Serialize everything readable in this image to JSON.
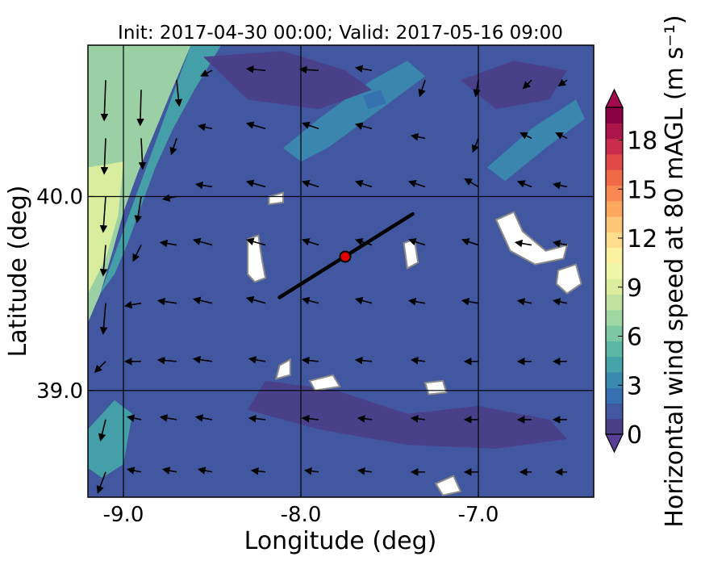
{
  "chart_data": {
    "type": "heatmap",
    "title": "Init: 2017-04-30 00:00; Valid: 2017-05-16 09:00",
    "xlabel": "Longitude (deg)",
    "ylabel": "Latitude (deg)",
    "xlim": [
      -9.2,
      -6.35
    ],
    "ylim": [
      38.45,
      40.78
    ],
    "xticks": [
      {
        "value": -9.0,
        "label": "-9.0"
      },
      {
        "value": -8.0,
        "label": "-8.0"
      },
      {
        "value": -7.0,
        "label": "-7.0"
      }
    ],
    "yticks": [
      {
        "value": 39.0,
        "label": "39.0"
      },
      {
        "value": 40.0,
        "label": "40.0"
      }
    ],
    "gridlines": {
      "lon": [
        -9.0,
        -8.0,
        -7.0
      ],
      "lat": [
        39.0,
        40.0
      ]
    },
    "colorbar": {
      "label": "Horizontal wind speed at 80 mAGL (m s⁻¹)",
      "min": 0,
      "max": 20,
      "extend": "both",
      "ticks": [
        {
          "value": 0,
          "label": "0"
        },
        {
          "value": 3,
          "label": "3"
        },
        {
          "value": 6,
          "label": "6"
        },
        {
          "value": 9,
          "label": "9"
        },
        {
          "value": 12,
          "label": "12"
        },
        {
          "value": 15,
          "label": "15"
        },
        {
          "value": 18,
          "label": "18"
        }
      ],
      "colors": [
        "#4a3f88",
        "#41579f",
        "#3670b0",
        "#3a89af",
        "#46a3a9",
        "#5cb8a3",
        "#7dc9a4",
        "#9fd7a3",
        "#bfe3a0",
        "#dcee9e",
        "#f2f6a8",
        "#fdf0a1",
        "#fddd8b",
        "#fdc677",
        "#fca85f",
        "#f88952",
        "#f06a47",
        "#e04b4a",
        "#c92d4b",
        "#ab1448",
        "#8a0244"
      ],
      "under_color": "#5a3f99",
      "over_color": "#a10a4e"
    },
    "transect": {
      "start": {
        "lon": -8.12,
        "lat": 39.48
      },
      "end": {
        "lon": -7.37,
        "lat": 39.91
      },
      "color": "#000000"
    },
    "marker": {
      "lon": -7.75,
      "lat": 39.69,
      "color": "#e00000"
    },
    "field_regions": [
      {
        "speed": 7.0,
        "points": [
          [
            -9.2,
            40.78
          ],
          [
            -8.62,
            40.78
          ],
          [
            -8.74,
            40.52
          ],
          [
            -8.83,
            40.32
          ],
          [
            -8.92,
            40.12
          ],
          [
            -9.0,
            39.92
          ],
          [
            -9.06,
            39.72
          ],
          [
            -9.13,
            39.5
          ],
          [
            -9.2,
            39.35
          ]
        ]
      },
      {
        "speed": 9.0,
        "points": [
          [
            -9.2,
            40.15
          ],
          [
            -9.0,
            40.18
          ],
          [
            -9.03,
            39.9
          ],
          [
            -9.1,
            39.68
          ],
          [
            -9.2,
            39.5
          ]
        ]
      },
      {
        "speed": 4.5,
        "points": [
          [
            -8.62,
            40.78
          ],
          [
            -8.45,
            40.78
          ],
          [
            -8.6,
            40.55
          ],
          [
            -8.72,
            40.35
          ],
          [
            -8.82,
            40.15
          ],
          [
            -8.9,
            39.95
          ],
          [
            -8.98,
            39.75
          ],
          [
            -9.05,
            39.6
          ],
          [
            -9.13,
            39.5
          ]
        ]
      },
      {
        "speed": 3.5,
        "points": [
          [
            -8.1,
            40.25
          ],
          [
            -7.9,
            40.4
          ],
          [
            -7.6,
            40.6
          ],
          [
            -7.4,
            40.7
          ],
          [
            -7.3,
            40.62
          ],
          [
            -7.55,
            40.45
          ],
          [
            -7.85,
            40.25
          ],
          [
            -8.0,
            40.18
          ]
        ]
      },
      {
        "speed": 2.5,
        "points": [
          [
            -7.65,
            40.52
          ],
          [
            -7.55,
            40.55
          ],
          [
            -7.52,
            40.48
          ],
          [
            -7.62,
            40.45
          ]
        ]
      },
      {
        "speed": 3.5,
        "points": [
          [
            -6.95,
            40.15
          ],
          [
            -6.7,
            40.35
          ],
          [
            -6.45,
            40.5
          ],
          [
            -6.4,
            40.4
          ],
          [
            -6.62,
            40.25
          ],
          [
            -6.85,
            40.08
          ]
        ]
      },
      {
        "speed": 0.6,
        "points": [
          [
            -8.55,
            40.72
          ],
          [
            -8.1,
            40.75
          ],
          [
            -7.75,
            40.65
          ],
          [
            -7.6,
            40.55
          ],
          [
            -7.9,
            40.45
          ],
          [
            -8.3,
            40.5
          ]
        ]
      },
      {
        "speed": 0.6,
        "points": [
          [
            -7.1,
            40.6
          ],
          [
            -6.8,
            40.7
          ],
          [
            -6.5,
            40.65
          ],
          [
            -6.6,
            40.5
          ],
          [
            -6.9,
            40.45
          ]
        ]
      },
      {
        "speed": 1.2,
        "points": [
          [
            -8.75,
            40.0
          ],
          [
            -8.35,
            40.08
          ],
          [
            -8.15,
            39.92
          ],
          [
            -8.35,
            39.78
          ],
          [
            -8.65,
            39.82
          ]
        ]
      },
      {
        "speed": 0.7,
        "points": [
          [
            -8.2,
            39.05
          ],
          [
            -7.8,
            39.0
          ],
          [
            -7.4,
            38.88
          ],
          [
            -7.0,
            38.92
          ],
          [
            -6.6,
            38.85
          ],
          [
            -6.5,
            38.75
          ],
          [
            -6.9,
            38.7
          ],
          [
            -7.4,
            38.72
          ],
          [
            -7.9,
            38.8
          ],
          [
            -8.3,
            38.9
          ]
        ]
      },
      {
        "speed": 1.0,
        "points": [
          [
            -8.85,
            38.85
          ],
          [
            -8.4,
            38.9
          ],
          [
            -8.1,
            38.75
          ],
          [
            -8.5,
            38.6
          ],
          [
            -8.9,
            38.65
          ]
        ]
      },
      {
        "speed": 1.5,
        "points": [
          [
            -7.5,
            39.45
          ],
          [
            -7.05,
            39.5
          ],
          [
            -6.85,
            39.3
          ],
          [
            -7.2,
            39.2
          ],
          [
            -7.55,
            39.28
          ]
        ]
      },
      {
        "speed": 4.0,
        "points": [
          [
            -9.05,
            38.95
          ],
          [
            -8.95,
            38.88
          ],
          [
            -9.0,
            38.62
          ],
          [
            -9.12,
            38.55
          ],
          [
            -9.2,
            38.6
          ],
          [
            -9.2,
            38.8
          ]
        ]
      }
    ],
    "wind_vectors": [
      {
        "lon": -9.1,
        "lat": 40.6,
        "u": -0.3,
        "v": -8
      },
      {
        "lon": -8.9,
        "lat": 40.55,
        "u": -0.2,
        "v": -7
      },
      {
        "lon": -8.7,
        "lat": 40.6,
        "u": 0.5,
        "v": -5
      },
      {
        "lon": -8.5,
        "lat": 40.65,
        "u": -2,
        "v": -1
      },
      {
        "lon": -8.2,
        "lat": 40.65,
        "u": -3.5,
        "v": 0.3
      },
      {
        "lon": -7.9,
        "lat": 40.65,
        "u": -3.5,
        "v": 0.2
      },
      {
        "lon": -7.6,
        "lat": 40.65,
        "u": -3,
        "v": 0.5
      },
      {
        "lon": -7.3,
        "lat": 40.6,
        "u": -1,
        "v": -3
      },
      {
        "lon": -7.0,
        "lat": 40.6,
        "u": -0.5,
        "v": -3
      },
      {
        "lon": -6.7,
        "lat": 40.6,
        "u": -1.5,
        "v": -1.5
      },
      {
        "lon": -6.5,
        "lat": 40.6,
        "u": -1.5,
        "v": -1
      },
      {
        "lon": -9.1,
        "lat": 40.3,
        "u": -0.3,
        "v": -7
      },
      {
        "lon": -8.9,
        "lat": 40.3,
        "u": 0.3,
        "v": -6
      },
      {
        "lon": -8.7,
        "lat": 40.3,
        "u": -1,
        "v": -3
      },
      {
        "lon": -8.5,
        "lat": 40.35,
        "u": -2.5,
        "v": 0.5
      },
      {
        "lon": -8.2,
        "lat": 40.35,
        "u": -3.5,
        "v": 1
      },
      {
        "lon": -7.9,
        "lat": 40.35,
        "u": -3,
        "v": 1
      },
      {
        "lon": -7.6,
        "lat": 40.35,
        "u": -3,
        "v": 0.8
      },
      {
        "lon": -7.3,
        "lat": 40.3,
        "u": -2.5,
        "v": 0.5
      },
      {
        "lon": -7.0,
        "lat": 40.3,
        "u": -1,
        "v": -2.5
      },
      {
        "lon": -6.7,
        "lat": 40.3,
        "u": -2,
        "v": 1
      },
      {
        "lon": -6.5,
        "lat": 40.3,
        "u": -2,
        "v": 1
      },
      {
        "lon": -9.1,
        "lat": 40.0,
        "u": -0.5,
        "v": -7
      },
      {
        "lon": -8.9,
        "lat": 40.0,
        "u": -0.8,
        "v": -5
      },
      {
        "lon": -8.7,
        "lat": 40.0,
        "u": -2.5,
        "v": -0.5
      },
      {
        "lon": -8.5,
        "lat": 40.05,
        "u": -3,
        "v": 0.5
      },
      {
        "lon": -8.2,
        "lat": 40.05,
        "u": -3.5,
        "v": 1
      },
      {
        "lon": -7.9,
        "lat": 40.05,
        "u": -3,
        "v": 1
      },
      {
        "lon": -7.6,
        "lat": 40.05,
        "u": -3,
        "v": 1
      },
      {
        "lon": -7.3,
        "lat": 40.05,
        "u": -3,
        "v": 1
      },
      {
        "lon": -7.0,
        "lat": 40.05,
        "u": -2.5,
        "v": 1.5
      },
      {
        "lon": -6.7,
        "lat": 40.05,
        "u": -2.5,
        "v": 1
      },
      {
        "lon": -6.5,
        "lat": 40.05,
        "u": -2.5,
        "v": 0.5
      },
      {
        "lon": -9.1,
        "lat": 39.75,
        "u": -0.5,
        "v": -6
      },
      {
        "lon": -8.9,
        "lat": 39.75,
        "u": -1.5,
        "v": -3
      },
      {
        "lon": -8.7,
        "lat": 39.75,
        "u": -3,
        "v": 0.5
      },
      {
        "lon": -8.5,
        "lat": 39.75,
        "u": -3.5,
        "v": 1
      },
      {
        "lon": -8.2,
        "lat": 39.75,
        "u": -3.5,
        "v": 1
      },
      {
        "lon": -7.9,
        "lat": 39.75,
        "u": -3,
        "v": 1
      },
      {
        "lon": -7.6,
        "lat": 39.75,
        "u": -3,
        "v": 1
      },
      {
        "lon": -7.3,
        "lat": 39.75,
        "u": -3,
        "v": 1
      },
      {
        "lon": -7.0,
        "lat": 39.75,
        "u": -3,
        "v": 1
      },
      {
        "lon": -6.7,
        "lat": 39.75,
        "u": -3,
        "v": 0.5
      },
      {
        "lon": -6.5,
        "lat": 39.75,
        "u": -2.5,
        "v": 0.5
      },
      {
        "lon": -9.1,
        "lat": 39.45,
        "u": -0.5,
        "v": -6
      },
      {
        "lon": -8.9,
        "lat": 39.45,
        "u": -3,
        "v": -0.5
      },
      {
        "lon": -8.7,
        "lat": 39.45,
        "u": -3.5,
        "v": 0.5
      },
      {
        "lon": -8.5,
        "lat": 39.45,
        "u": -3.5,
        "v": 0.8
      },
      {
        "lon": -8.2,
        "lat": 39.45,
        "u": -3.5,
        "v": 1
      },
      {
        "lon": -7.9,
        "lat": 39.45,
        "u": -3,
        "v": 0.8
      },
      {
        "lon": -7.6,
        "lat": 39.45,
        "u": -3,
        "v": 0.8
      },
      {
        "lon": -7.3,
        "lat": 39.45,
        "u": -3,
        "v": 0.5
      },
      {
        "lon": -7.0,
        "lat": 39.45,
        "u": -3,
        "v": 0.5
      },
      {
        "lon": -6.7,
        "lat": 39.45,
        "u": -2.5,
        "v": 0.5
      },
      {
        "lon": -6.5,
        "lat": 39.45,
        "u": -2.5,
        "v": 0.5
      },
      {
        "lon": -9.1,
        "lat": 39.15,
        "u": -2,
        "v": -2
      },
      {
        "lon": -8.9,
        "lat": 39.15,
        "u": -3,
        "v": 0
      },
      {
        "lon": -8.7,
        "lat": 39.15,
        "u": -3.5,
        "v": 0.3
      },
      {
        "lon": -8.5,
        "lat": 39.15,
        "u": -3.5,
        "v": 0.5
      },
      {
        "lon": -8.2,
        "lat": 39.15,
        "u": -3,
        "v": 0.5
      },
      {
        "lon": -7.9,
        "lat": 39.15,
        "u": -3,
        "v": 0.3
      },
      {
        "lon": -7.6,
        "lat": 39.15,
        "u": -3,
        "v": 0.3
      },
      {
        "lon": -7.3,
        "lat": 39.15,
        "u": -2.5,
        "v": 0.3
      },
      {
        "lon": -7.0,
        "lat": 39.15,
        "u": -2.5,
        "v": 0
      },
      {
        "lon": -6.7,
        "lat": 39.15,
        "u": -2.5,
        "v": 0
      },
      {
        "lon": -6.5,
        "lat": 39.15,
        "u": -2.5,
        "v": 0
      },
      {
        "lon": -9.1,
        "lat": 38.85,
        "u": -1,
        "v": -4
      },
      {
        "lon": -8.9,
        "lat": 38.85,
        "u": -2.5,
        "v": 0.5
      },
      {
        "lon": -8.7,
        "lat": 38.85,
        "u": -3,
        "v": 0.5
      },
      {
        "lon": -8.5,
        "lat": 38.85,
        "u": -3,
        "v": 0.5
      },
      {
        "lon": -8.2,
        "lat": 38.85,
        "u": -3,
        "v": 0.3
      },
      {
        "lon": -7.9,
        "lat": 38.85,
        "u": -3,
        "v": 0.3
      },
      {
        "lon": -7.6,
        "lat": 38.85,
        "u": -2.5,
        "v": 0.3
      },
      {
        "lon": -7.3,
        "lat": 38.85,
        "u": -2.5,
        "v": 0.3
      },
      {
        "lon": -7.0,
        "lat": 38.85,
        "u": -2.5,
        "v": 0
      },
      {
        "lon": -6.7,
        "lat": 38.85,
        "u": -2.5,
        "v": 0
      },
      {
        "lon": -6.5,
        "lat": 38.85,
        "u": -2.5,
        "v": 0
      },
      {
        "lon": -9.1,
        "lat": 38.58,
        "u": -1.5,
        "v": -4
      },
      {
        "lon": -8.9,
        "lat": 38.58,
        "u": -2.5,
        "v": 0.5
      },
      {
        "lon": -8.7,
        "lat": 38.58,
        "u": -2.5,
        "v": 0.5
      },
      {
        "lon": -8.5,
        "lat": 38.58,
        "u": -2.5,
        "v": 0.5
      },
      {
        "lon": -8.2,
        "lat": 38.58,
        "u": -2.5,
        "v": 0.3
      },
      {
        "lon": -7.9,
        "lat": 38.58,
        "u": -2.5,
        "v": 0.3
      },
      {
        "lon": -7.6,
        "lat": 38.58,
        "u": -2.5,
        "v": 0.3
      },
      {
        "lon": -7.3,
        "lat": 38.58,
        "u": -2.5,
        "v": 0
      },
      {
        "lon": -7.0,
        "lat": 38.58,
        "u": -2.5,
        "v": 0
      },
      {
        "lon": -6.7,
        "lat": 38.58,
        "u": -2,
        "v": 0
      },
      {
        "lon": -6.5,
        "lat": 38.58,
        "u": -2,
        "v": 0
      }
    ],
    "masked_areas": [
      {
        "points": [
          [
            -8.3,
            39.78
          ],
          [
            -8.24,
            39.8
          ],
          [
            -8.22,
            39.68
          ],
          [
            -8.2,
            39.58
          ],
          [
            -8.26,
            39.56
          ],
          [
            -8.3,
            39.6
          ]
        ]
      },
      {
        "points": [
          [
            -6.9,
            39.88
          ],
          [
            -6.8,
            39.92
          ],
          [
            -6.75,
            39.82
          ],
          [
            -6.62,
            39.72
          ],
          [
            -6.5,
            39.75
          ],
          [
            -6.52,
            39.68
          ],
          [
            -6.68,
            39.65
          ],
          [
            -6.82,
            39.72
          ]
        ]
      },
      {
        "points": [
          [
            -6.55,
            39.62
          ],
          [
            -6.45,
            39.65
          ],
          [
            -6.42,
            39.55
          ],
          [
            -6.5,
            39.5
          ],
          [
            -6.56,
            39.55
          ]
        ]
      },
      {
        "points": [
          [
            -7.42,
            39.76
          ],
          [
            -7.36,
            39.78
          ],
          [
            -7.34,
            39.66
          ],
          [
            -7.4,
            39.63
          ]
        ]
      },
      {
        "points": [
          [
            -8.12,
            39.13
          ],
          [
            -8.06,
            39.16
          ],
          [
            -8.06,
            39.08
          ],
          [
            -8.14,
            39.06
          ]
        ]
      },
      {
        "points": [
          [
            -7.95,
            39.05
          ],
          [
            -7.82,
            39.08
          ],
          [
            -7.78,
            39.02
          ],
          [
            -7.92,
            39.0
          ]
        ]
      },
      {
        "points": [
          [
            -7.3,
            39.04
          ],
          [
            -7.2,
            39.05
          ],
          [
            -7.18,
            38.99
          ],
          [
            -7.28,
            38.98
          ]
        ]
      },
      {
        "points": [
          [
            -7.24,
            38.52
          ],
          [
            -7.14,
            38.56
          ],
          [
            -7.1,
            38.48
          ],
          [
            -7.2,
            38.46
          ]
        ]
      },
      {
        "points": [
          [
            -8.18,
            40.0
          ],
          [
            -8.1,
            40.02
          ],
          [
            -8.1,
            39.97
          ],
          [
            -8.18,
            39.96
          ]
        ]
      }
    ]
  }
}
